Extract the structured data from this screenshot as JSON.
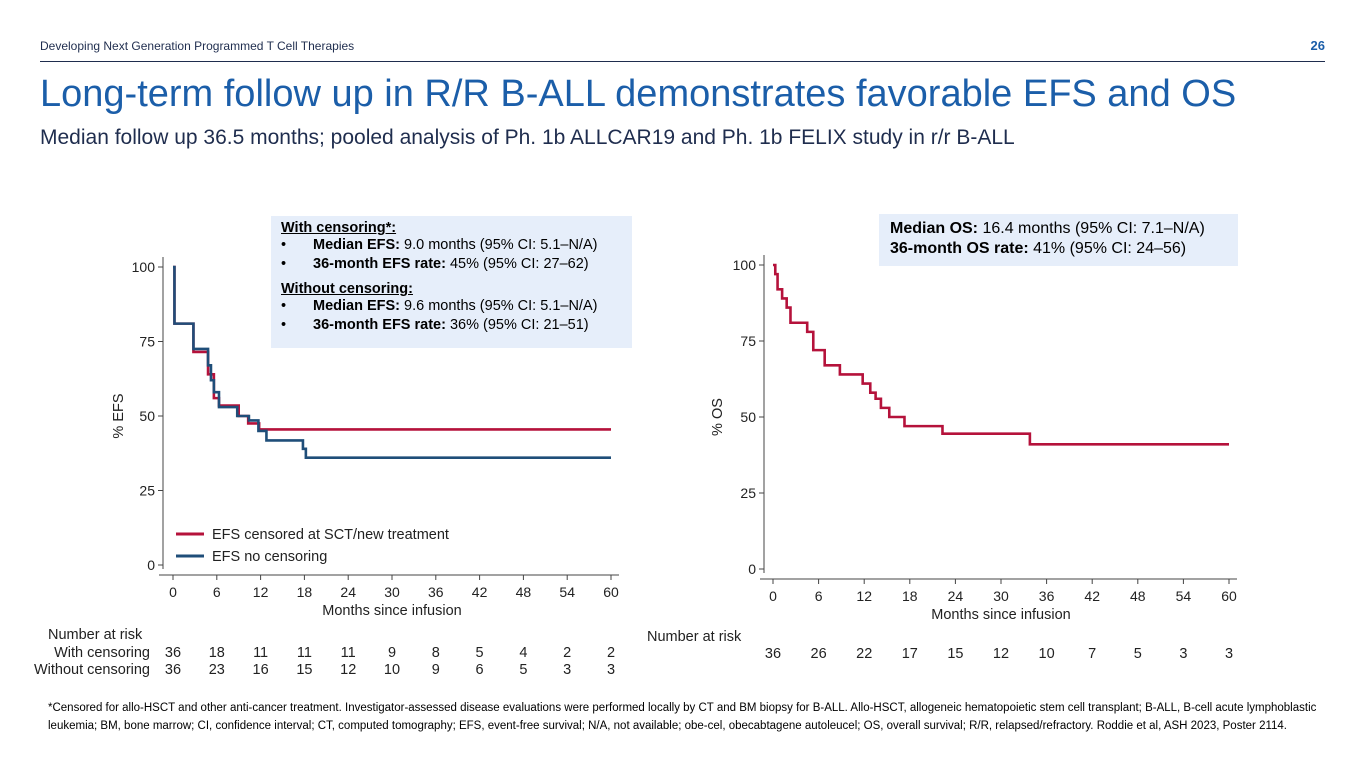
{
  "header": {
    "text": "Developing Next Generation Programmed T Cell Therapies",
    "page_number": "26"
  },
  "title": "Long-term follow up in R/R B-ALL demonstrates favorable EFS and OS",
  "subtitle": "Median follow up 36.5 months; pooled analysis of Ph. 1b ALLCAR19 and Ph. 1b FELIX study in r/r B-ALL",
  "efs_box": {
    "with_heading": "With censoring*:",
    "with_items": [
      {
        "bullet": "•",
        "label": "Median EFS:",
        "value": " 9.0 months (95% CI: 5.1–N/A)"
      },
      {
        "bullet": "•",
        "label": "36-month EFS rate:",
        "value": " 45% (95% CI: 27–62)"
      }
    ],
    "without_heading": "Without censoring:",
    "without_items": [
      {
        "bullet": "•",
        "label": "Median EFS:",
        "value": " 9.6 months (95% CI: 5.1–N/A)"
      },
      {
        "bullet": "•",
        "label": "36-month EFS rate:",
        "value": " 36% (95% CI: 21–51)"
      }
    ]
  },
  "os_box": {
    "line1_label": "Median OS:",
    "line1_value": " 16.4 months (95% CI: 7.1–N/A)",
    "line2_label": "36-month OS rate:",
    "line2_value": " 41% (95% CI: 24–56)"
  },
  "colors": {
    "red": "#b5123b",
    "navy": "#1f4e79",
    "title_blue": "#1b5ea9",
    "box_bg": "#e6eefa"
  },
  "chart_data": [
    {
      "type": "line",
      "step": true,
      "ylabel": "% EFS",
      "xlabel": "Months since infusion",
      "xlim": [
        0,
        60
      ],
      "ylim": [
        0,
        100
      ],
      "xticks": [
        "0",
        "6",
        "12",
        "18",
        "24",
        "30",
        "36",
        "42",
        "48",
        "54",
        "60"
      ],
      "yticks": [
        "0",
        "25",
        "50",
        "75",
        "100"
      ],
      "legend_position": "bottom-left",
      "series": [
        {
          "name": "EFS censored at SCT/new treatment",
          "color": "#b5123b",
          "x": [
            0,
            0.2,
            2.8,
            4.8,
            5.6,
            6.3,
            9,
            10.3,
            11.8,
            60
          ],
          "y": [
            100,
            81,
            71.5,
            64,
            56,
            53.5,
            50,
            47.5,
            45.5,
            45.5
          ]
        },
        {
          "name": "EFS no censoring",
          "color": "#1f4e79",
          "x": [
            0,
            0.2,
            2.8,
            4.8,
            5.2,
            5.6,
            6.3,
            8.8,
            10.4,
            11.7,
            12.8,
            17.8,
            18.2,
            60
          ],
          "y": [
            100,
            81,
            72.5,
            67,
            62,
            58,
            53,
            50,
            48.5,
            45,
            41.8,
            39,
            36,
            36
          ]
        }
      ],
      "risk_table": {
        "title": "Number at risk",
        "rows": [
          {
            "label": "With censoring",
            "values": [
              "36",
              "18",
              "11",
              "11",
              "11",
              "9",
              "8",
              "5",
              "4",
              "2",
              "2"
            ]
          },
          {
            "label": "Without censoring",
            "values": [
              "36",
              "23",
              "16",
              "15",
              "12",
              "10",
              "9",
              "6",
              "5",
              "3",
              "3"
            ]
          }
        ]
      }
    },
    {
      "type": "line",
      "step": true,
      "ylabel": "% OS",
      "xlabel": "Months since infusion",
      "xlim": [
        0,
        60
      ],
      "ylim": [
        0,
        100
      ],
      "xticks": [
        "0",
        "6",
        "12",
        "18",
        "24",
        "30",
        "36",
        "42",
        "48",
        "54",
        "60"
      ],
      "yticks": [
        "0",
        "25",
        "50",
        "75",
        "100"
      ],
      "series": [
        {
          "color": "#b5123b",
          "x": [
            0,
            0.3,
            0.6,
            1.2,
            1.8,
            2.3,
            4.5,
            5.3,
            6.8,
            8.8,
            11.8,
            12.8,
            13.5,
            14.2,
            15.3,
            17.3,
            22.3,
            33.8,
            60
          ],
          "y": [
            100,
            97,
            92,
            89,
            86,
            81,
            78,
            72,
            67,
            64,
            61,
            58,
            56,
            53,
            50,
            47,
            44.5,
            41,
            41
          ]
        }
      ],
      "risk_table": {
        "title": "Number at risk",
        "rows": [
          {
            "label": "",
            "values": [
              "36",
              "26",
              "22",
              "17",
              "15",
              "12",
              "10",
              "7",
              "5",
              "3",
              "3"
            ]
          }
        ]
      }
    }
  ],
  "footnote": "*Censored for allo-HSCT and other anti-cancer treatment. Investigator-assessed disease evaluations were performed locally by CT and BM biopsy for B-ALL. Allo-HSCT, allogeneic hematopoietic stem cell transplant; B-ALL, B-cell acute lymphoblastic leukemia; BM, bone marrow; CI, confidence interval; CT, computed tomography; EFS, event-free survival; N/A, not available; obe-cel, obecabtagene autoleucel; OS, overall survival; R/R, relapsed/refractory. Roddie et al, ASH 2023, Poster 2114."
}
